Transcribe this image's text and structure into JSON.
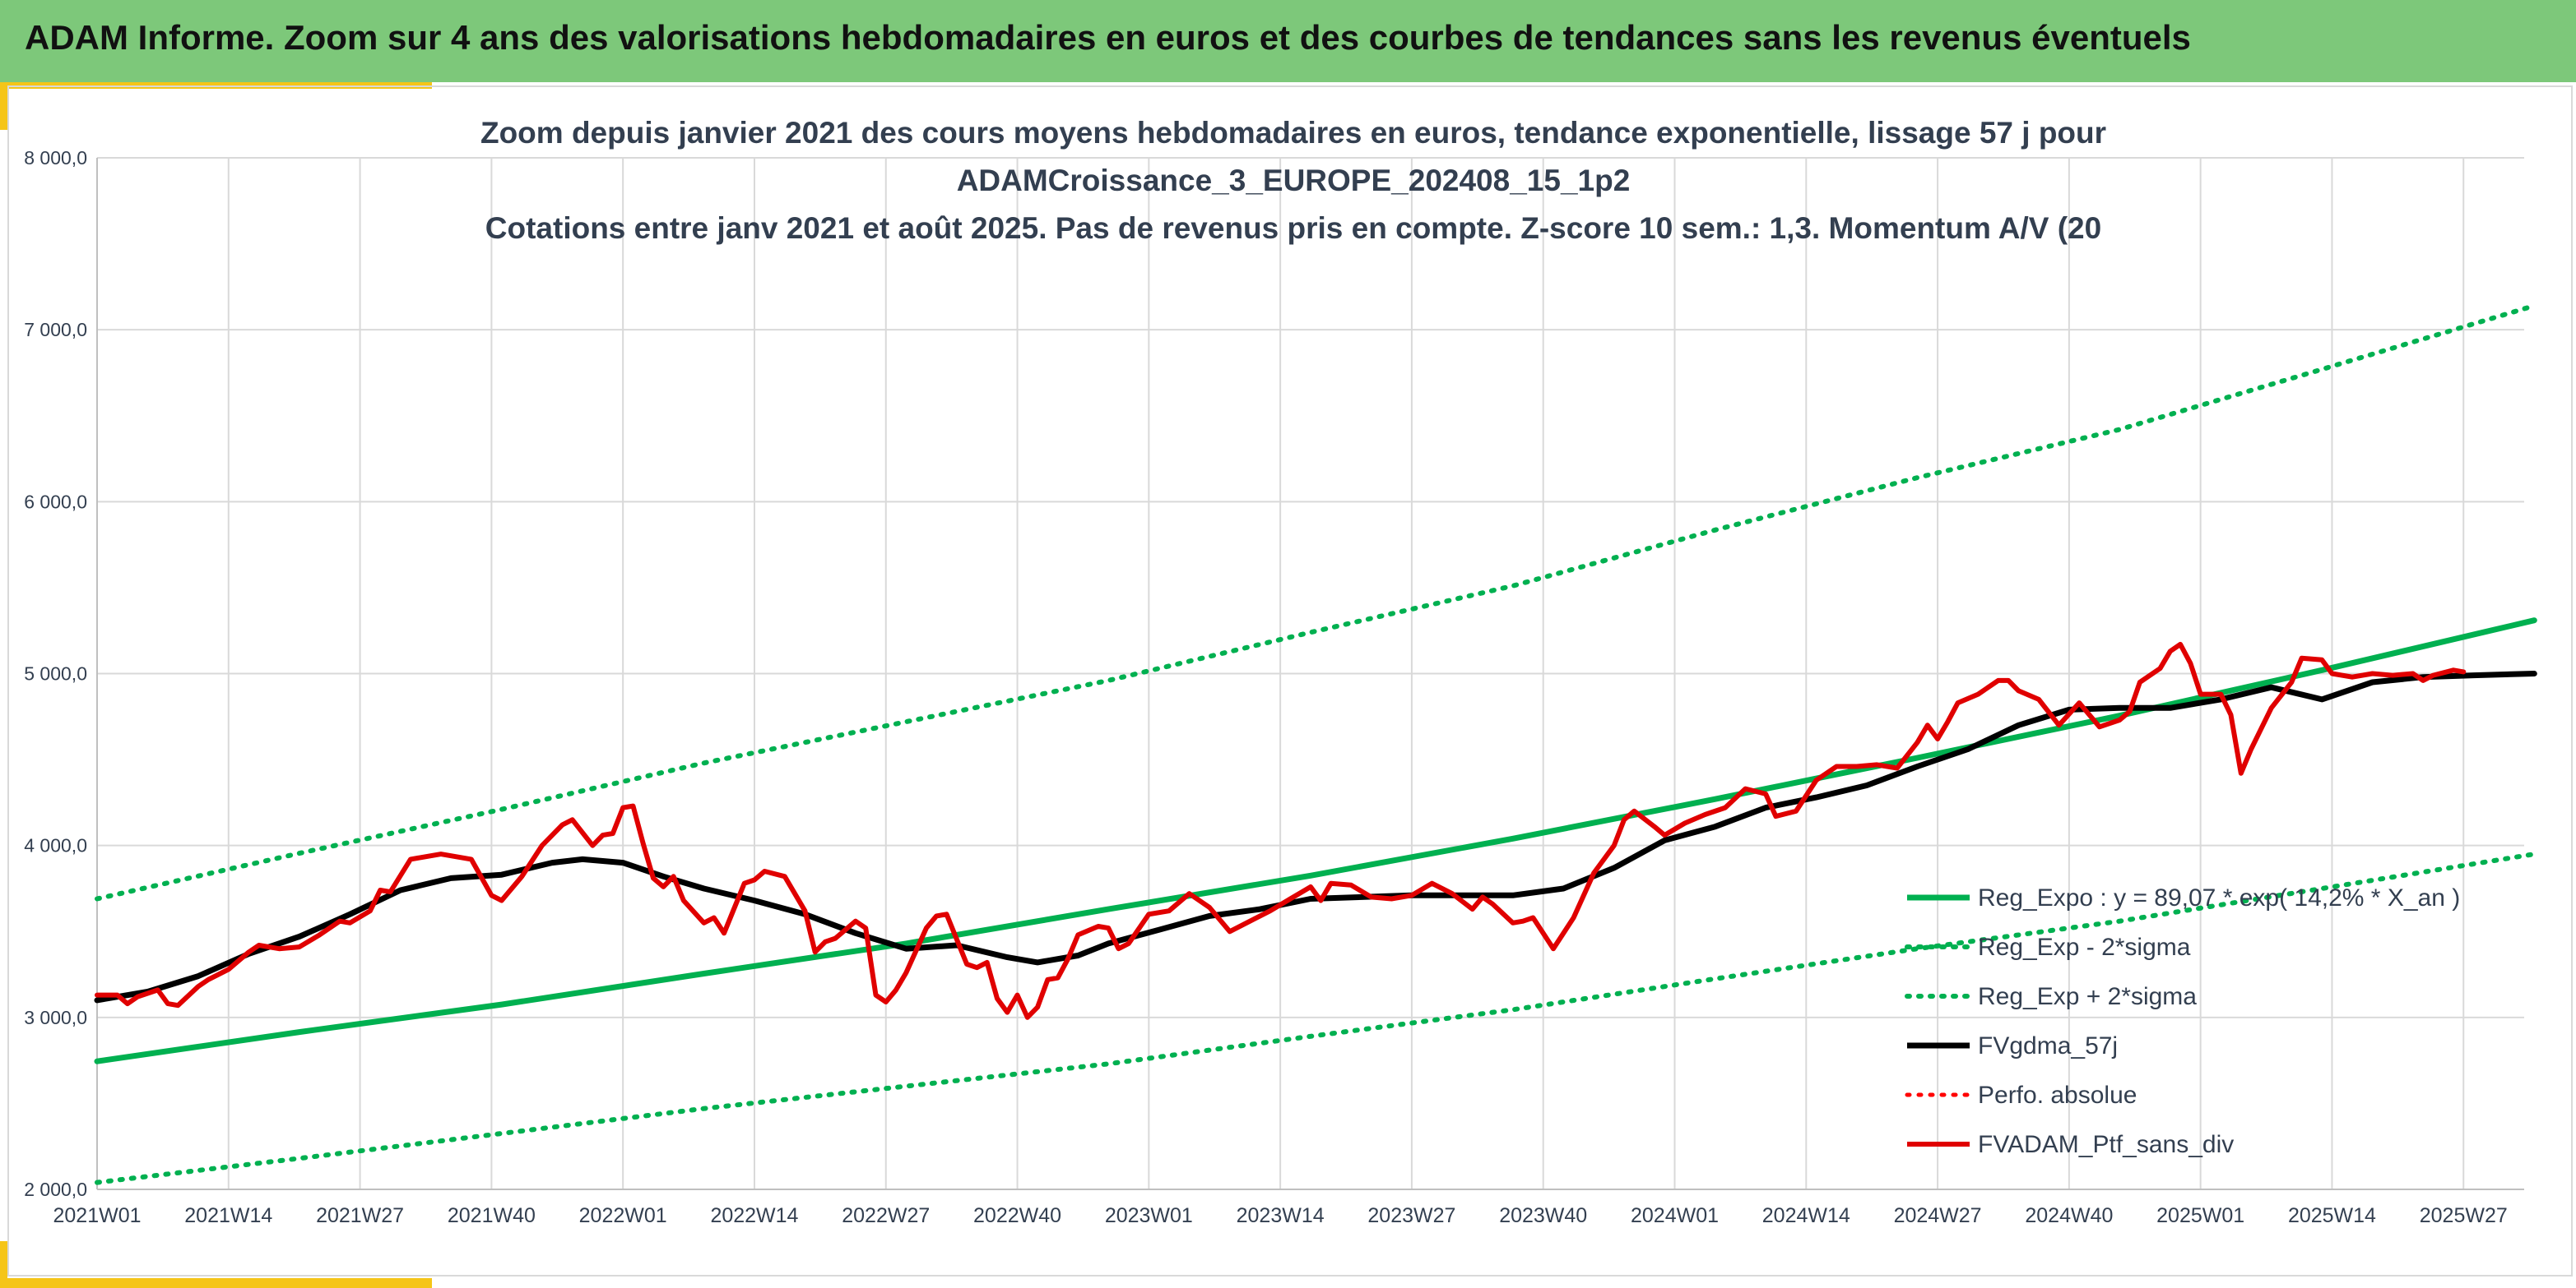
{
  "banner": {
    "title": "ADAM Informe. Zoom sur 4 ans des valorisations hebdomadaires en euros et des courbes de tendances sans les revenus éventuels"
  },
  "chart_data": {
    "type": "line",
    "title_lines": [
      "Zoom depuis janvier 2021 des cours moyens hebdomadaires en euros, tendance exponentielle, lissage 57 j pour",
      "ADAMCroissance_3_EUROPE_202408_15_1p2",
      "Cotations entre janv 2021 et août 2025. Pas de revenus pris en compte. Z-score 10 sem.: 1,3. Momentum A/V (20"
    ],
    "ylim": [
      2000,
      8000
    ],
    "yticks": [
      {
        "value": 2000,
        "label": "2 000,0"
      },
      {
        "value": 3000,
        "label": "3 000,0"
      },
      {
        "value": 4000,
        "label": "4 000,0"
      },
      {
        "value": 5000,
        "label": "5 000,0"
      },
      {
        "value": 6000,
        "label": "6 000,0"
      },
      {
        "value": 7000,
        "label": "7 000,0"
      },
      {
        "value": 8000,
        "label": "8 000,0"
      }
    ],
    "xlim": [
      0,
      240
    ],
    "xticks": [
      {
        "week": 0,
        "label": "2021W01"
      },
      {
        "week": 13,
        "label": "2021W14"
      },
      {
        "week": 26,
        "label": "2021W27"
      },
      {
        "week": 39,
        "label": "2021W40"
      },
      {
        "week": 52,
        "label": "2022W01"
      },
      {
        "week": 65,
        "label": "2022W14"
      },
      {
        "week": 78,
        "label": "2022W27"
      },
      {
        "week": 91,
        "label": "2022W40"
      },
      {
        "week": 104,
        "label": "2023W01"
      },
      {
        "week": 117,
        "label": "2023W14"
      },
      {
        "week": 130,
        "label": "2023W27"
      },
      {
        "week": 143,
        "label": "2023W40"
      },
      {
        "week": 156,
        "label": "2024W01"
      },
      {
        "week": 169,
        "label": "2024W14"
      },
      {
        "week": 182,
        "label": "2024W27"
      },
      {
        "week": 195,
        "label": "2024W40"
      },
      {
        "week": 208,
        "label": "2025W01"
      },
      {
        "week": 221,
        "label": "2025W14"
      },
      {
        "week": 234,
        "label": "2025W27"
      }
    ],
    "grid": true,
    "legend_position": "bottom-right",
    "series": [
      {
        "key": "reg",
        "name": "Reg_Expo : y = 89,07 * exp( 14,2% *  X_an )",
        "color": "#00b050",
        "style": "solid",
        "points": [
          [
            0,
            2745
          ],
          [
            20,
            2915
          ],
          [
            40,
            3075
          ],
          [
            60,
            3255
          ],
          [
            80,
            3430
          ],
          [
            100,
            3630
          ],
          [
            120,
            3825
          ],
          [
            140,
            4040
          ],
          [
            160,
            4270
          ],
          [
            180,
            4510
          ],
          [
            200,
            4755
          ],
          [
            220,
            5020
          ],
          [
            241,
            5310
          ]
        ]
      },
      {
        "key": "lower",
        "name": "Reg_Exp - 2*sigma",
        "color": "#00b050",
        "style": "dotted",
        "points": [
          [
            0,
            2040
          ],
          [
            20,
            2180
          ],
          [
            40,
            2325
          ],
          [
            60,
            2470
          ],
          [
            80,
            2600
          ],
          [
            100,
            2730
          ],
          [
            120,
            2890
          ],
          [
            140,
            3045
          ],
          [
            160,
            3225
          ],
          [
            180,
            3400
          ],
          [
            200,
            3560
          ],
          [
            220,
            3750
          ],
          [
            241,
            3950
          ]
        ]
      },
      {
        "key": "upper",
        "name": "Reg_Exp + 2*sigma",
        "color": "#00b050",
        "style": "dotted",
        "points": [
          [
            0,
            3690
          ],
          [
            20,
            3955
          ],
          [
            40,
            4210
          ],
          [
            60,
            4480
          ],
          [
            80,
            4720
          ],
          [
            100,
            4960
          ],
          [
            120,
            5240
          ],
          [
            140,
            5510
          ],
          [
            160,
            5835
          ],
          [
            180,
            6140
          ],
          [
            200,
            6420
          ],
          [
            220,
            6770
          ],
          [
            241,
            7140
          ]
        ]
      },
      {
        "key": "fv",
        "name": "FVgdma_57j",
        "color": "#000000",
        "style": "solid",
        "points": [
          [
            0,
            3100
          ],
          [
            5,
            3150
          ],
          [
            10,
            3240
          ],
          [
            15,
            3370
          ],
          [
            20,
            3470
          ],
          [
            25,
            3600
          ],
          [
            30,
            3740
          ],
          [
            35,
            3810
          ],
          [
            40,
            3830
          ],
          [
            45,
            3900
          ],
          [
            48,
            3920
          ],
          [
            52,
            3900
          ],
          [
            56,
            3820
          ],
          [
            60,
            3750
          ],
          [
            65,
            3680
          ],
          [
            70,
            3600
          ],
          [
            75,
            3490
          ],
          [
            80,
            3400
          ],
          [
            85,
            3420
          ],
          [
            90,
            3350
          ],
          [
            93,
            3320
          ],
          [
            97,
            3360
          ],
          [
            100,
            3430
          ],
          [
            105,
            3510
          ],
          [
            110,
            3590
          ],
          [
            115,
            3630
          ],
          [
            120,
            3690
          ],
          [
            125,
            3700
          ],
          [
            130,
            3710
          ],
          [
            135,
            3710
          ],
          [
            140,
            3710
          ],
          [
            145,
            3750
          ],
          [
            150,
            3870
          ],
          [
            155,
            4030
          ],
          [
            160,
            4110
          ],
          [
            165,
            4220
          ],
          [
            170,
            4280
          ],
          [
            175,
            4350
          ],
          [
            180,
            4460
          ],
          [
            185,
            4560
          ],
          [
            190,
            4700
          ],
          [
            195,
            4790
          ],
          [
            200,
            4800
          ],
          [
            205,
            4800
          ],
          [
            210,
            4850
          ],
          [
            215,
            4920
          ],
          [
            220,
            4850
          ],
          [
            225,
            4950
          ],
          [
            230,
            4980
          ],
          [
            235,
            4990
          ],
          [
            241,
            5000
          ]
        ]
      },
      {
        "key": "perf",
        "name": "Perfo. absolue",
        "color": "#ff0000",
        "style": "dotted",
        "points": []
      },
      {
        "key": "ptf",
        "name": "FVADAM_Ptf_sans_div",
        "color": "#e00000",
        "style": "solid",
        "points": [
          [
            0,
            3130
          ],
          [
            2,
            3130
          ],
          [
            3,
            3080
          ],
          [
            4,
            3120
          ],
          [
            6,
            3160
          ],
          [
            7,
            3080
          ],
          [
            8,
            3070
          ],
          [
            10,
            3180
          ],
          [
            11,
            3220
          ],
          [
            13,
            3280
          ],
          [
            15,
            3380
          ],
          [
            16,
            3420
          ],
          [
            18,
            3400
          ],
          [
            20,
            3410
          ],
          [
            22,
            3480
          ],
          [
            24,
            3560
          ],
          [
            25,
            3550
          ],
          [
            27,
            3620
          ],
          [
            28,
            3740
          ],
          [
            29,
            3730
          ],
          [
            31,
            3920
          ],
          [
            32,
            3930
          ],
          [
            34,
            3950
          ],
          [
            35,
            3940
          ],
          [
            37,
            3920
          ],
          [
            39,
            3710
          ],
          [
            40,
            3680
          ],
          [
            42,
            3820
          ],
          [
            44,
            4000
          ],
          [
            46,
            4120
          ],
          [
            47,
            4150
          ],
          [
            49,
            4000
          ],
          [
            50,
            4060
          ],
          [
            51,
            4070
          ],
          [
            52,
            4220
          ],
          [
            53,
            4230
          ],
          [
            54,
            4010
          ],
          [
            55,
            3810
          ],
          [
            56,
            3760
          ],
          [
            57,
            3820
          ],
          [
            58,
            3680
          ],
          [
            60,
            3550
          ],
          [
            61,
            3580
          ],
          [
            62,
            3490
          ],
          [
            64,
            3780
          ],
          [
            65,
            3800
          ],
          [
            66,
            3850
          ],
          [
            68,
            3820
          ],
          [
            70,
            3620
          ],
          [
            71,
            3380
          ],
          [
            72,
            3440
          ],
          [
            73,
            3460
          ],
          [
            75,
            3560
          ],
          [
            76,
            3520
          ],
          [
            77,
            3130
          ],
          [
            78,
            3090
          ],
          [
            79,
            3160
          ],
          [
            80,
            3260
          ],
          [
            82,
            3520
          ],
          [
            83,
            3590
          ],
          [
            84,
            3600
          ],
          [
            86,
            3310
          ],
          [
            87,
            3290
          ],
          [
            88,
            3320
          ],
          [
            89,
            3110
          ],
          [
            90,
            3030
          ],
          [
            91,
            3130
          ],
          [
            92,
            3000
          ],
          [
            93,
            3060
          ],
          [
            94,
            3220
          ],
          [
            95,
            3230
          ],
          [
            96,
            3340
          ],
          [
            97,
            3480
          ],
          [
            99,
            3530
          ],
          [
            100,
            3520
          ],
          [
            101,
            3400
          ],
          [
            102,
            3430
          ],
          [
            104,
            3600
          ],
          [
            106,
            3620
          ],
          [
            108,
            3720
          ],
          [
            110,
            3640
          ],
          [
            112,
            3500
          ],
          [
            114,
            3560
          ],
          [
            116,
            3620
          ],
          [
            118,
            3690
          ],
          [
            120,
            3760
          ],
          [
            121,
            3680
          ],
          [
            122,
            3780
          ],
          [
            124,
            3770
          ],
          [
            126,
            3700
          ],
          [
            128,
            3690
          ],
          [
            130,
            3710
          ],
          [
            132,
            3780
          ],
          [
            134,
            3720
          ],
          [
            136,
            3630
          ],
          [
            137,
            3700
          ],
          [
            138,
            3660
          ],
          [
            140,
            3550
          ],
          [
            141,
            3560
          ],
          [
            142,
            3580
          ],
          [
            144,
            3400
          ],
          [
            146,
            3580
          ],
          [
            148,
            3840
          ],
          [
            150,
            4000
          ],
          [
            151,
            4150
          ],
          [
            152,
            4200
          ],
          [
            154,
            4110
          ],
          [
            155,
            4060
          ],
          [
            157,
            4130
          ],
          [
            159,
            4180
          ],
          [
            161,
            4220
          ],
          [
            163,
            4330
          ],
          [
            165,
            4300
          ],
          [
            166,
            4170
          ],
          [
            168,
            4200
          ],
          [
            170,
            4380
          ],
          [
            172,
            4460
          ],
          [
            174,
            4460
          ],
          [
            176,
            4470
          ],
          [
            178,
            4450
          ],
          [
            180,
            4600
          ],
          [
            181,
            4700
          ],
          [
            182,
            4620
          ],
          [
            183,
            4720
          ],
          [
            184,
            4830
          ],
          [
            186,
            4880
          ],
          [
            188,
            4960
          ],
          [
            189,
            4960
          ],
          [
            190,
            4900
          ],
          [
            192,
            4850
          ],
          [
            194,
            4700
          ],
          [
            196,
            4830
          ],
          [
            198,
            4690
          ],
          [
            200,
            4730
          ],
          [
            201,
            4780
          ],
          [
            202,
            4950
          ],
          [
            204,
            5030
          ],
          [
            205,
            5130
          ],
          [
            206,
            5170
          ],
          [
            207,
            5060
          ],
          [
            208,
            4880
          ],
          [
            210,
            4880
          ],
          [
            211,
            4760
          ],
          [
            212,
            4420
          ],
          [
            213,
            4560
          ],
          [
            215,
            4800
          ],
          [
            217,
            4950
          ],
          [
            218,
            5090
          ],
          [
            220,
            5080
          ],
          [
            221,
            5000
          ],
          [
            223,
            4980
          ],
          [
            225,
            5000
          ],
          [
            227,
            4990
          ],
          [
            229,
            5000
          ],
          [
            230,
            4960
          ],
          [
            231,
            4990
          ],
          [
            233,
            5020
          ],
          [
            234,
            5010
          ]
        ]
      }
    ]
  }
}
